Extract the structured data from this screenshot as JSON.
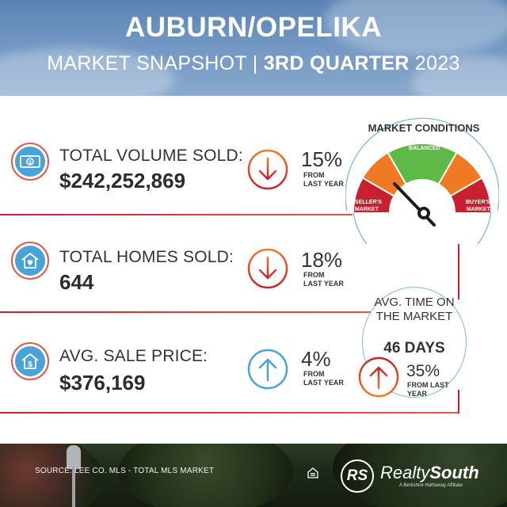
{
  "header": {
    "title": "AUBURN/OPELIKA",
    "subtitle_part1": "MARKET SNAPSHOT | ",
    "subtitle_bold": "3RD QUARTER",
    "subtitle_year": " 2023"
  },
  "metrics": [
    {
      "label": "TOTAL VOLUME SOLD:",
      "value": "$242,252,869",
      "change": "15%",
      "direction": "down",
      "icon": "money-icon",
      "from_line1": "FROM",
      "from_line2": "LAST YEAR"
    },
    {
      "label": "TOTAL HOMES SOLD:",
      "value": "644",
      "change": "18%",
      "direction": "down",
      "icon": "house-heart-icon",
      "from_line1": "FROM",
      "from_line2": "LAST YEAR"
    },
    {
      "label": "AVG. SALE PRICE:",
      "value": "$376,169",
      "change": "4%",
      "direction": "up",
      "icon": "house-dollar-icon",
      "from_line1": "FROM",
      "from_line2": "LAST YEAR"
    }
  ],
  "market_conditions": {
    "title": "MARKET CONDITIONS",
    "zones": {
      "sellers_line1": "SELLER'S",
      "sellers_line2": "MARKET",
      "balanced": "BALANCED",
      "buyers_line1": "BUYER'S",
      "buyers_line2": "MARKET"
    },
    "needle": "seller's market"
  },
  "time_on_market": {
    "label_line1": "AVG. TIME ON",
    "label_line2": "THE MARKET",
    "value": "46 DAYS",
    "change": "35%",
    "direction": "up",
    "from_line1": "FROM LAST",
    "from_line2": "YEAR"
  },
  "footer": {
    "source": "SOURCE: LEE CO. MLS - TOTAL MLS MARKET",
    "logo_mark": "RS",
    "brand_part1": "Realty",
    "brand_part2": "South",
    "brand_tagline": "A Berkshire Hathaway Affiliate"
  },
  "colors": {
    "red": "#c8202f",
    "orange": "#f07a24",
    "green": "#5fb947",
    "blue": "#4aa3d8",
    "dark": "#2f2f2f"
  }
}
